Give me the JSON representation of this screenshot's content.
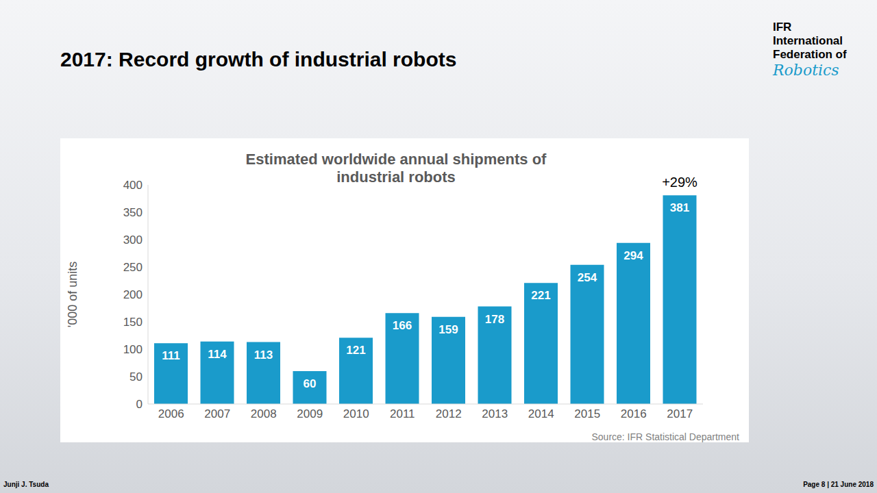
{
  "heading": "2017: Record growth of industrial robots",
  "logo": {
    "line1": "IFR",
    "line2": "International",
    "line3": "Federation of",
    "line4": "Robotics"
  },
  "footer": {
    "author": "Junji J. Tsuda",
    "page": "Page 8 | 21 June 2018"
  },
  "chart_data": {
    "type": "bar",
    "title": "Estimated worldwide annual shipments of industrial robots",
    "y_label": "'000 of units",
    "categories": [
      "2006",
      "2007",
      "2008",
      "2009",
      "2010",
      "2011",
      "2012",
      "2013",
      "2014",
      "2015",
      "2016",
      "2017"
    ],
    "values": [
      111,
      114,
      113,
      60,
      121,
      166,
      159,
      178,
      221,
      254,
      294,
      381
    ],
    "color": "#1a9bcb",
    "ylim": [
      0,
      400
    ],
    "yticks": [
      0,
      50,
      100,
      150,
      200,
      250,
      300,
      350,
      400
    ],
    "grid": false,
    "data_labels": true,
    "annotations": [
      {
        "category": "2017",
        "text": "+29%"
      }
    ],
    "source": "Source: IFR Statistical Department"
  }
}
